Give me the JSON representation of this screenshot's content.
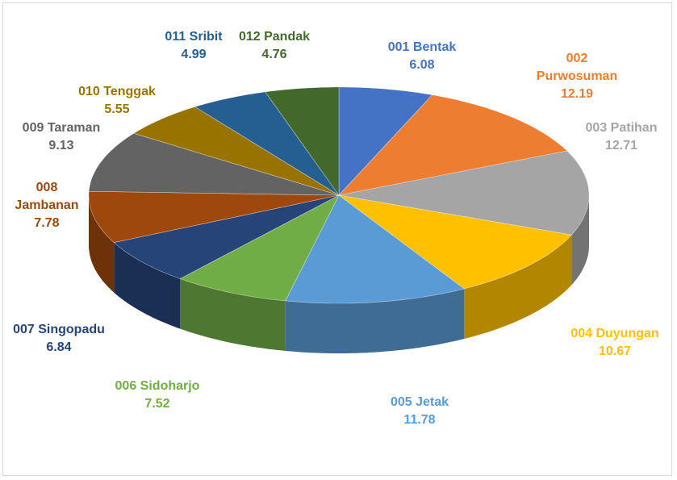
{
  "chart_data": {
    "type": "pie3d",
    "categories": [
      "001 Bentak",
      "002 Purwosuman",
      "003 Patihan",
      "004 Duyungan",
      "005 Jetak",
      "006 Sidoharjo",
      "007 Singopadu",
      "008 Jambanan",
      "009 Taraman",
      "010 Tenggak",
      "011 Sribit",
      "012 Pandak"
    ],
    "values": [
      6.08,
      12.19,
      12.71,
      10.67,
      11.78,
      7.52,
      6.84,
      7.78,
      9.13,
      5.55,
      4.99,
      4.76
    ],
    "colors": [
      "#4472c4",
      "#ed7d31",
      "#a5a5a5",
      "#ffc000",
      "#5b9bd5",
      "#70ad47",
      "#264478",
      "#9e480e",
      "#636363",
      "#997300",
      "#255e91",
      "#43682b"
    ]
  }
}
